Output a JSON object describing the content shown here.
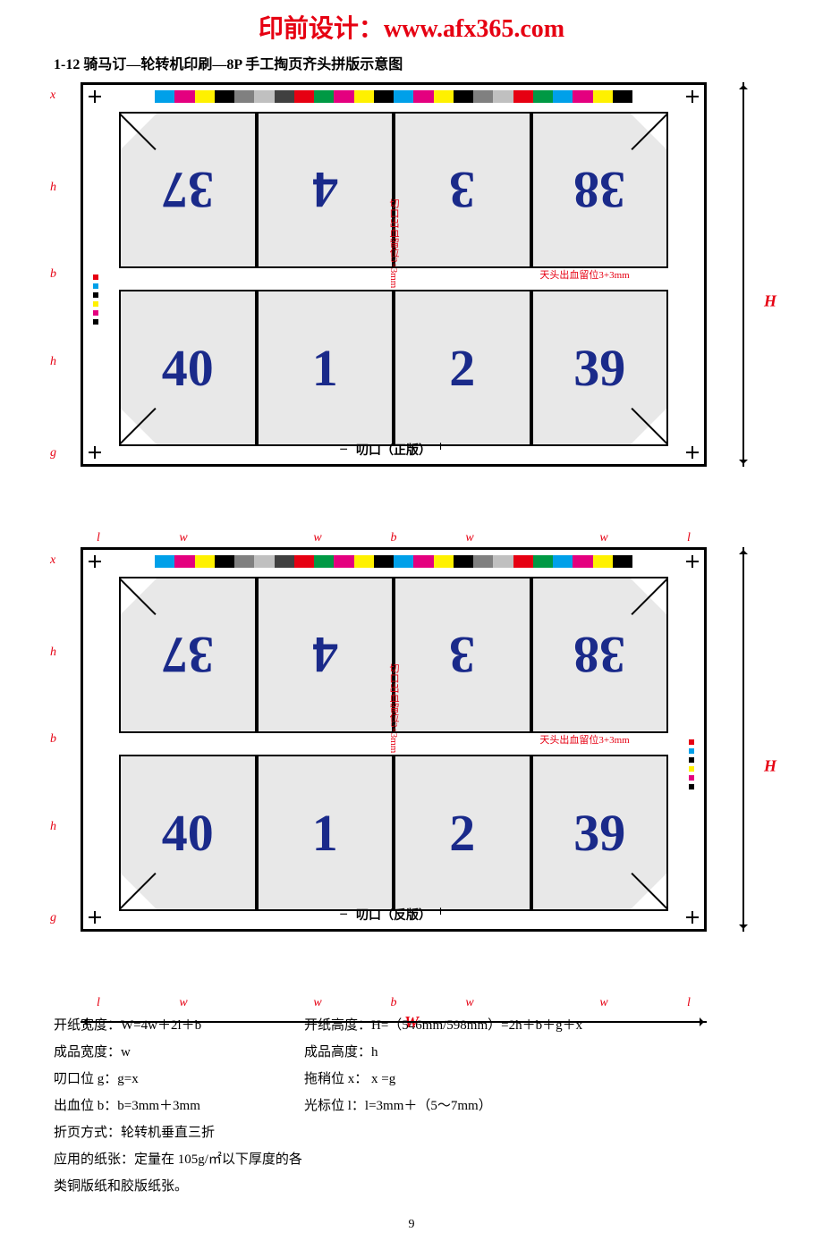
{
  "header": {
    "title": "印前设计：www.afx365.com"
  },
  "subtitle": "1-12 骑马订—轮转机印刷—8P 手工掏页齐头拼版示意图",
  "color_bar": [
    "#00a0e9",
    "#e4007f",
    "#fff100",
    "#000000",
    "#808080",
    "#c0c0c0",
    "#404040",
    "#e60012",
    "#009944",
    "#e4007f",
    "#fff100",
    "#000000",
    "#00a0e9",
    "#e4007f",
    "#fff100",
    "#000000",
    "#808080",
    "#c0c0c0",
    "#e60012",
    "#009944",
    "#00a0e9",
    "#e4007f",
    "#fff100",
    "#000000"
  ],
  "side_dot_colors": [
    "#e60012",
    "#00a0e9",
    "#000000",
    "#fff100",
    "#e4007f",
    "#000000"
  ],
  "sheets": [
    {
      "gripper": "叨口（正版）",
      "rows": [
        {
          "flipped": true,
          "cells": [
            "37",
            "4",
            "3",
            "38"
          ]
        },
        {
          "flipped": false,
          "cells": [
            "40",
            "1",
            "2",
            "39"
          ]
        }
      ],
      "center_v_label": "切口出血留位3+3mm",
      "center_h_label": "天头出血留位3+3mm",
      "dots_side": "left"
    },
    {
      "gripper": "叨口（反版）",
      "rows": [
        {
          "flipped": true,
          "cells": [
            "37",
            "4",
            "3",
            "38"
          ]
        },
        {
          "flipped": false,
          "cells": [
            "40",
            "1",
            "2",
            "39"
          ]
        }
      ],
      "center_v_label": "切口出血留位3+3mm",
      "center_h_label": "天头出血留位3+3mm",
      "dots_side": "right"
    }
  ],
  "dims": {
    "H": "H",
    "W": "W",
    "h_cols": [
      "l",
      "w",
      "w",
      "b",
      "w",
      "w",
      "l"
    ],
    "h_col_widths": [
      40,
      150,
      150,
      20,
      150,
      150,
      40
    ],
    "v_rows": [
      "x",
      "h",
      "b",
      "h",
      "g"
    ],
    "v_row_heights": [
      30,
      175,
      20,
      175,
      30
    ]
  },
  "formulas": [
    {
      "c1": "开纸宽度：W=4w＋2l＋b",
      "c2": "开纸高度：H=（546mm/598mm）=2h＋b＋g＋x"
    },
    {
      "c1": "成品宽度：w",
      "c2": "成品高度：h"
    },
    {
      "c1": "叨口位 g：g=x",
      "c2": "拖稍位 x： x =g"
    },
    {
      "c1": "出血位 b：b=3mm＋3mm",
      "c2": "光标位 l：l=3mm＋（5～7mm）"
    },
    {
      "c1": "折页方式：轮转机垂直三折",
      "c2": ""
    },
    {
      "c1": "应用的纸张：定量在 105g/㎡以下厚度的各类铜版纸和胶版纸张。",
      "c2": ""
    }
  ],
  "page_number": "9"
}
